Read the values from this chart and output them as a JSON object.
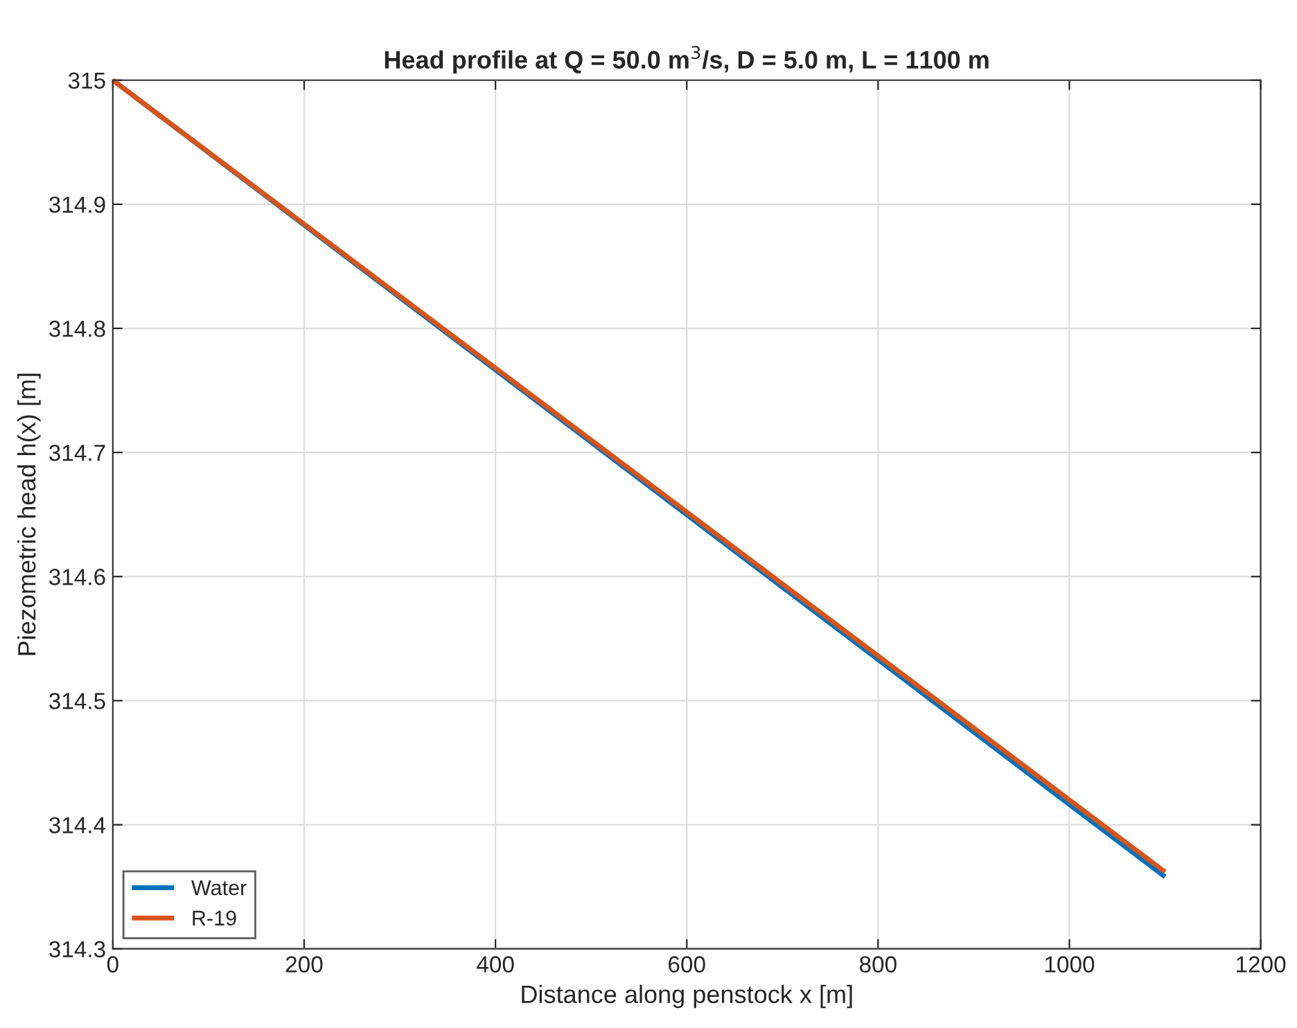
{
  "chart_data": {
    "type": "line",
    "title": "Head profile at Q = 50.0 m$^{3}$/s, D = 5.0 m, L = 1100 m",
    "xlabel": "Distance along penstock x [m]",
    "ylabel": "Piezometric head h(x) [m]",
    "x": [
      0,
      1100
    ],
    "series": [
      {
        "name": "Water",
        "color": "#0072bd",
        "values": [
          315,
          314.358
        ]
      },
      {
        "name": "R-19",
        "color": "#d95319",
        "values": [
          315,
          314.362
        ]
      }
    ],
    "xlim": [
      0,
      1200
    ],
    "xticks": [
      0,
      200,
      400,
      600,
      800,
      1000,
      1200
    ],
    "ylim": [
      314.3,
      315
    ],
    "yticks": [
      314.3,
      314.4,
      314.5,
      314.6,
      314.7,
      314.8,
      314.9,
      315
    ],
    "grid": true,
    "legend": "bottom left",
    "line_style": "solid"
  }
}
